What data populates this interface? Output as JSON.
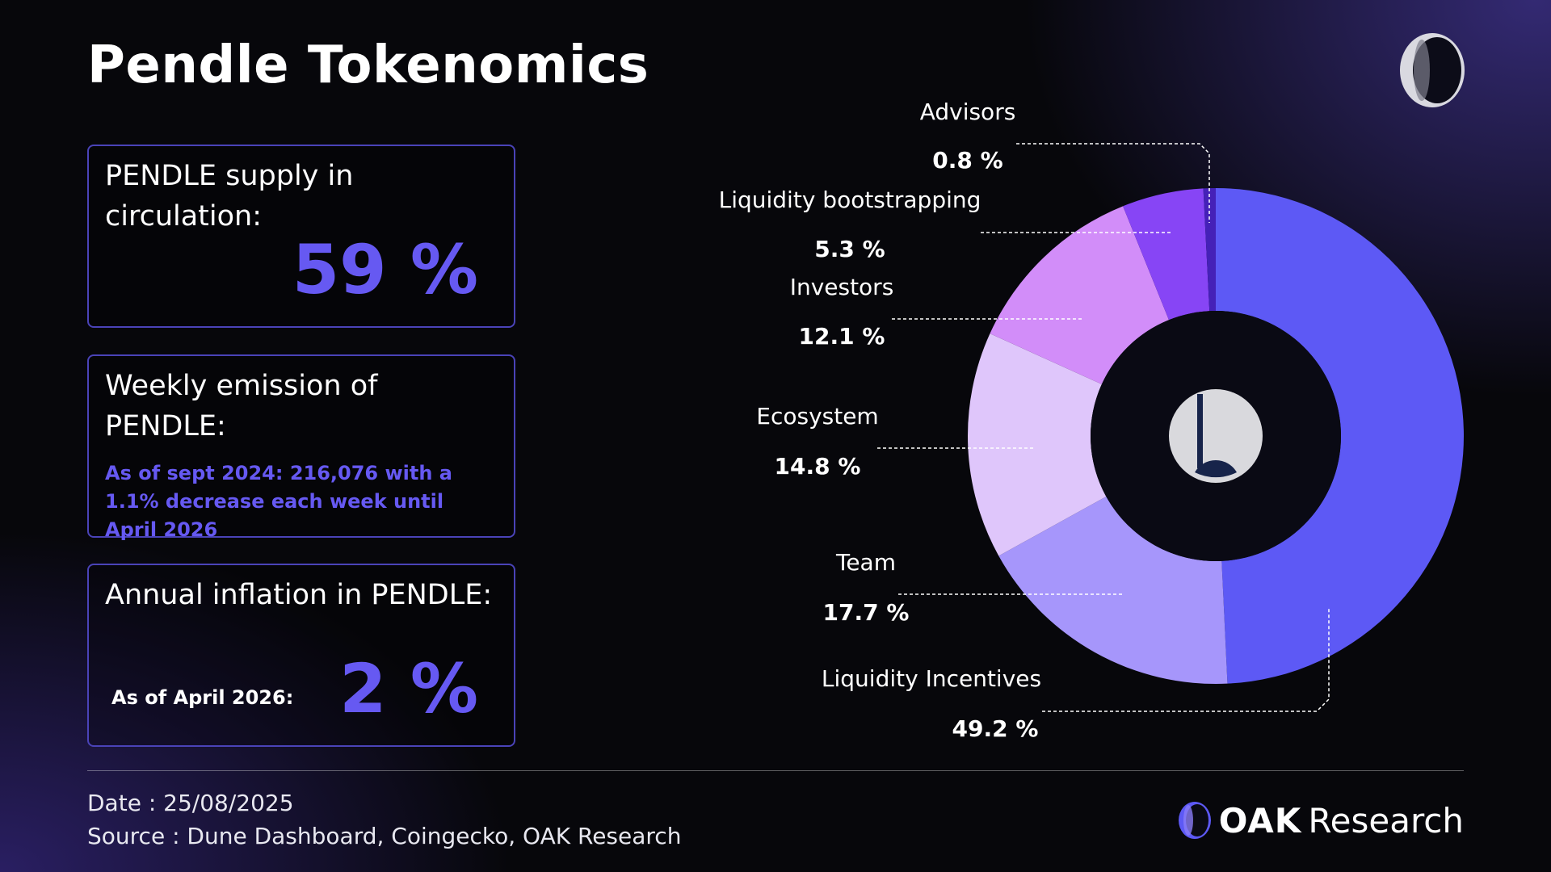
{
  "title": "Pendle Tokenomics",
  "cards": {
    "supply": {
      "label": "PENDLE supply in circulation:",
      "value": "59 %"
    },
    "emission": {
      "label": "Weekly emission of PENDLE:",
      "note": "As of sept 2024: 216,076 with a 1.1% decrease each week until April 2026"
    },
    "inflation": {
      "label": "Annual inflation in PENDLE:",
      "sub": "As of April 2026:",
      "value": "2 %"
    }
  },
  "chart_data": {
    "type": "pie",
    "variant": "donut",
    "start_angle_deg": 0,
    "direction": "clockwise",
    "slices": [
      {
        "name": "Liquidity Incentives",
        "value": 49.2,
        "label": "49.2 %",
        "color": "#5d59f5"
      },
      {
        "name": "Team",
        "value": 17.7,
        "label": "17.7 %",
        "color": "#a696fb"
      },
      {
        "name": "Ecosystem",
        "value": 14.8,
        "label": "14.8 %",
        "color": "#dfc6fb"
      },
      {
        "name": "Investors",
        "value": 12.1,
        "label": "12.1 %",
        "color": "#d28df9"
      },
      {
        "name": "Liquidity bootstrapping",
        "value": 5.3,
        "label": "5.3 %",
        "color": "#8745f5"
      },
      {
        "name": "Advisors",
        "value": 0.8,
        "label": "0.8 %",
        "color": "#4521b8"
      }
    ],
    "center_bg": "#0a0a14",
    "center_icon": "gauge-icon"
  },
  "footer": {
    "date": "Date : 25/08/2025",
    "source": "Source : Dune Dashboard, Coingecko, OAK Research",
    "brand_oak": "OAK",
    "brand_research": "Research"
  },
  "icons": {
    "top_logo": "oak-logo-icon",
    "brand_logo": "oak-logo-icon"
  },
  "colors": {
    "accent": "#6659f2",
    "background": "#07070b",
    "card_border": "#4a43b8"
  }
}
